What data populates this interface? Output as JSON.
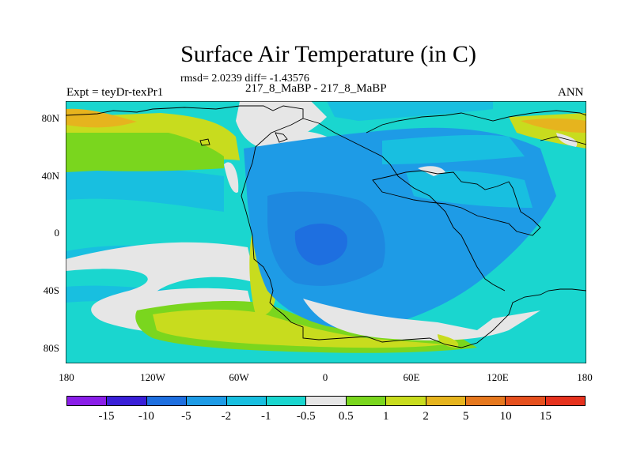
{
  "title": "Surface Air Temperature (in C)",
  "stats": "rmsd= 2.0239 diff= -1.43576",
  "expt_label": "Expt = teyDr-texPr1",
  "cases_label": "217_8_MaBP - 217_8_MaBP",
  "season": "ANN",
  "y_ticks": [
    "80N",
    "40N",
    "0",
    "40S",
    "80S"
  ],
  "x_ticks": [
    "180",
    "120W",
    "60W",
    "0",
    "60E",
    "120E",
    "180"
  ],
  "colorbar": {
    "labels": [
      "-15",
      "-10",
      "-5",
      "-2",
      "-1",
      "-0.5",
      "0.5",
      "1",
      "2",
      "5",
      "10",
      "15"
    ],
    "colors": [
      "#8a1ee8",
      "#3a1fd8",
      "#1e6fe0",
      "#1e9be6",
      "#18bfe0",
      "#1ad6cf",
      "#e6e6e6",
      "#7ad61e",
      "#c8dc1e",
      "#e6b41e",
      "#e6781e",
      "#e6501e",
      "#e6321e"
    ]
  },
  "chart_data": {
    "type": "heatmap",
    "title": "Surface Air Temperature (in C)",
    "xlabel": "",
    "ylabel": "",
    "x_range": [
      -180,
      180
    ],
    "y_range": [
      -90,
      90
    ],
    "legend_placement": "bottom colorbar"
  }
}
